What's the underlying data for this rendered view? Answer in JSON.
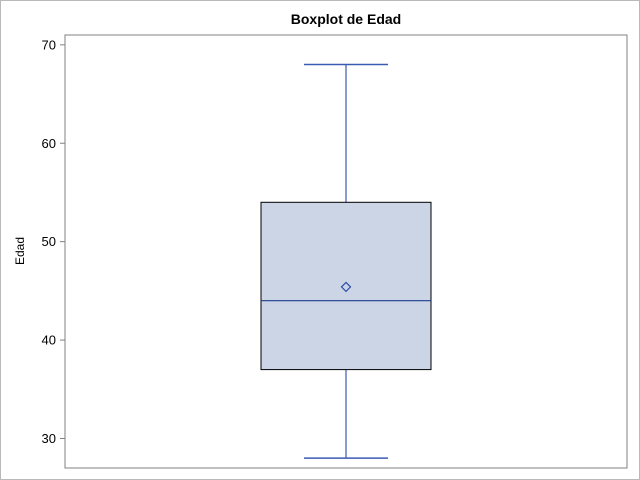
{
  "chart_data": {
    "type": "boxplot",
    "title": "Boxplot de Edad",
    "xlabel": "",
    "ylabel": "Edad",
    "ylim": [
      27,
      71
    ],
    "yticks": [
      30,
      40,
      50,
      60,
      70
    ],
    "ytick_labels": [
      "30",
      "40",
      "50",
      "60",
      "70"
    ],
    "grid": false,
    "series": [
      {
        "name": "Edad",
        "min": 28,
        "q1": 37,
        "median": 44,
        "q3": 54,
        "max": 68,
        "mean": 45.4
      }
    ]
  },
  "colors": {
    "box_fill": "#cbd5e6",
    "box_border": "#000000",
    "median_line": "#1f3d8a",
    "whisker": "#3b5bb3",
    "mean_marker": "#2a4ea8",
    "frame": "#b9b9b9",
    "axis": "#808080"
  }
}
